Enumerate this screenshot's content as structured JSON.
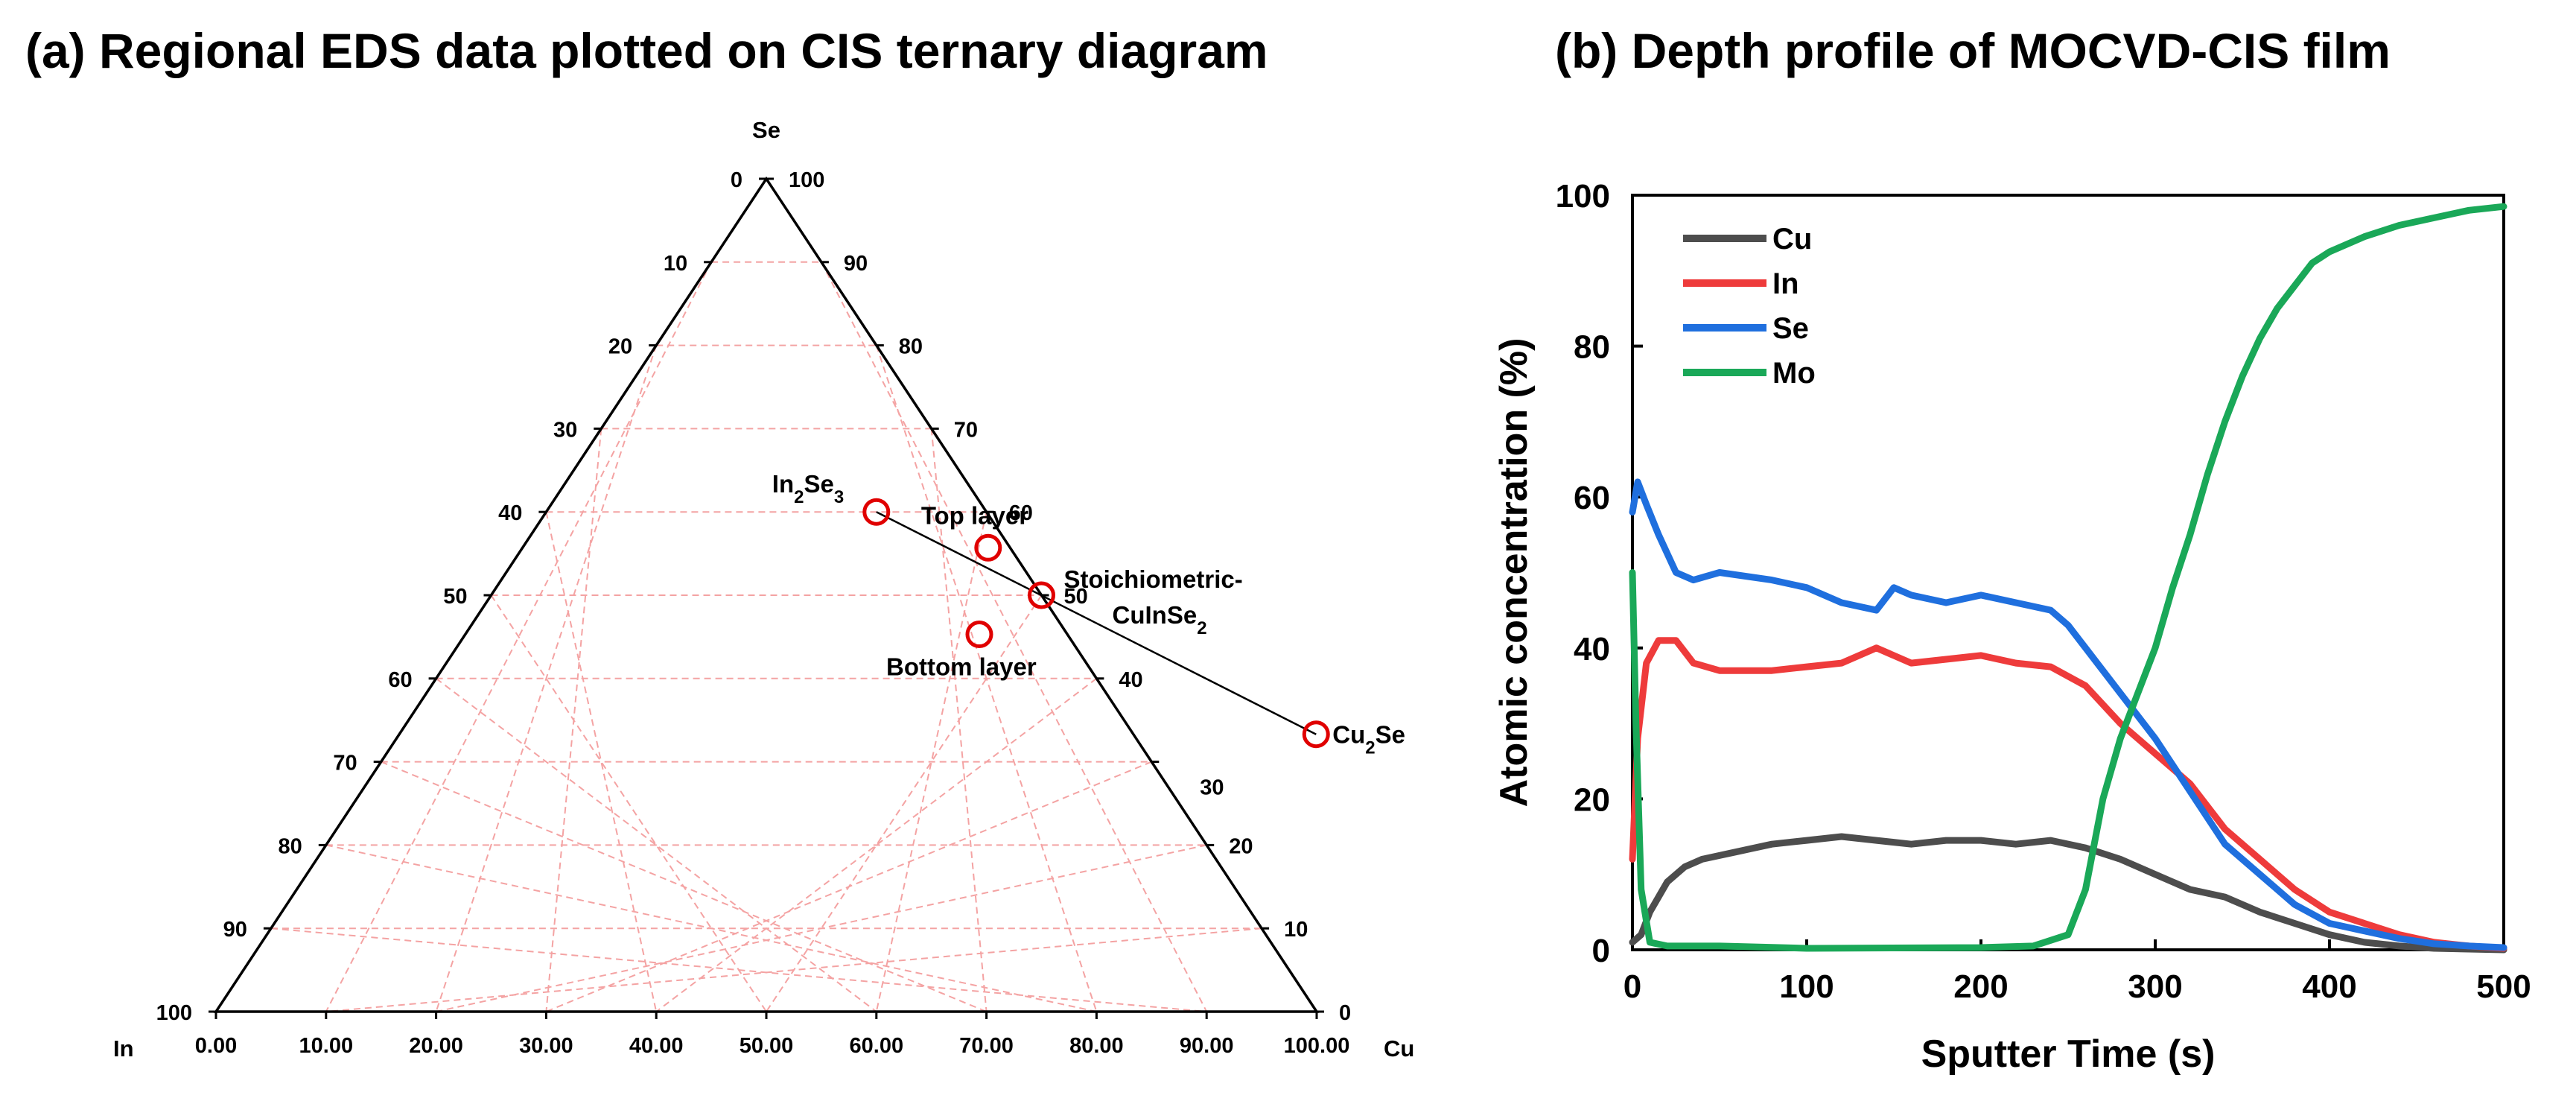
{
  "panel_a": {
    "title": "(a) Regional EDS data plotted on CIS ternary diagram"
  },
  "panel_b": {
    "title": "(b) Depth profile of MOCVD-CIS film"
  },
  "chart_data": [
    {
      "type": "ternary",
      "title": "(a) Regional EDS data plotted on CIS ternary diagram",
      "corners": {
        "top": "Se",
        "left": "In",
        "right": "Cu"
      },
      "bottom_axis_ticks": [
        "0.00",
        "10.00",
        "20.00",
        "30.00",
        "40.00",
        "50.00",
        "60.00",
        "70.00",
        "80.00",
        "90.00",
        "100.00"
      ],
      "left_axis_ticks": [
        "0",
        "10",
        "20",
        "30",
        "40",
        "50",
        "60",
        "70",
        "80",
        "90",
        "100"
      ],
      "right_axis_ticks": [
        "100",
        "90",
        "80",
        "70",
        "60",
        "50",
        "40",
        "30",
        "20",
        "10",
        "0"
      ],
      "grid": true,
      "tie_line": {
        "from": "In2Se3",
        "to": "Cu2Se"
      },
      "points": [
        {
          "name": "In2Se3",
          "label_main": "In",
          "sub1": "2",
          "mid": "Se",
          "sub2": "3",
          "x": 30.0,
          "left": 40.0
        },
        {
          "name": "Top layer",
          "label_main": "Top layer",
          "x": 42.3,
          "left": 44.3
        },
        {
          "name": "Stoichiometric-CuInSe2",
          "label_line1": "Stoichiometric-",
          "label_line2": "CuInSe",
          "sub2": "2",
          "x": 50.0,
          "left": 50.0
        },
        {
          "name": "Bottom layer",
          "label_main": "Bottom layer",
          "x": 46.7,
          "left": 54.7
        },
        {
          "name": "Cu2Se",
          "label_main": "Cu",
          "sub1": "2",
          "mid": "Se",
          "x": 83.3,
          "left": 66.7
        }
      ]
    },
    {
      "type": "line",
      "title": "(b) Depth profile of MOCVD-CIS film",
      "xlabel": "Sputter Time (s)",
      "ylabel": "Atomic concentration (%)",
      "xlim": [
        0,
        500
      ],
      "ylim": [
        0,
        100
      ],
      "xticks": [
        0,
        100,
        200,
        300,
        400,
        500
      ],
      "yticks": [
        0,
        20,
        40,
        60,
        80,
        100
      ],
      "legend_position": "top-left",
      "series": [
        {
          "name": "Cu",
          "color": "#4d4d4d",
          "points": [
            [
              0,
              1
            ],
            [
              5,
              2
            ],
            [
              10,
              5
            ],
            [
              20,
              9
            ],
            [
              30,
              11
            ],
            [
              40,
              12
            ],
            [
              60,
              13
            ],
            [
              80,
              14
            ],
            [
              100,
              14.5
            ],
            [
              120,
              15
            ],
            [
              140,
              14.5
            ],
            [
              160,
              14
            ],
            [
              180,
              14.5
            ],
            [
              200,
              14.5
            ],
            [
              220,
              14
            ],
            [
              240,
              14.5
            ],
            [
              260,
              13.5
            ],
            [
              280,
              12
            ],
            [
              300,
              10
            ],
            [
              320,
              8
            ],
            [
              340,
              7
            ],
            [
              360,
              5
            ],
            [
              380,
              3.5
            ],
            [
              400,
              2
            ],
            [
              420,
              1
            ],
            [
              440,
              0.5
            ],
            [
              460,
              0.2
            ],
            [
              500,
              0
            ]
          ]
        },
        {
          "name": "In",
          "color": "#ee3b3b",
          "points": [
            [
              0,
              12
            ],
            [
              3,
              28
            ],
            [
              8,
              38
            ],
            [
              15,
              41
            ],
            [
              25,
              41
            ],
            [
              35,
              38
            ],
            [
              50,
              37
            ],
            [
              80,
              37
            ],
            [
              100,
              37.5
            ],
            [
              120,
              38
            ],
            [
              140,
              40
            ],
            [
              160,
              38
            ],
            [
              180,
              38.5
            ],
            [
              200,
              39
            ],
            [
              220,
              38
            ],
            [
              240,
              37.5
            ],
            [
              260,
              35
            ],
            [
              280,
              30
            ],
            [
              300,
              26
            ],
            [
              320,
              22
            ],
            [
              340,
              16
            ],
            [
              360,
              12
            ],
            [
              380,
              8
            ],
            [
              400,
              5
            ],
            [
              420,
              3.5
            ],
            [
              440,
              2
            ],
            [
              460,
              1
            ],
            [
              480,
              0.5
            ],
            [
              500,
              0.2
            ]
          ]
        },
        {
          "name": "Se",
          "color": "#1f6fde",
          "points": [
            [
              0,
              58
            ],
            [
              3,
              62
            ],
            [
              8,
              59
            ],
            [
              15,
              55
            ],
            [
              25,
              50
            ],
            [
              35,
              49
            ],
            [
              50,
              50
            ],
            [
              80,
              49
            ],
            [
              100,
              48
            ],
            [
              120,
              46
            ],
            [
              140,
              45
            ],
            [
              150,
              48
            ],
            [
              160,
              47
            ],
            [
              180,
              46
            ],
            [
              200,
              47
            ],
            [
              220,
              46
            ],
            [
              240,
              45
            ],
            [
              250,
              43
            ],
            [
              260,
              40
            ],
            [
              280,
              34
            ],
            [
              300,
              28
            ],
            [
              320,
              21
            ],
            [
              340,
              14
            ],
            [
              360,
              10
            ],
            [
              380,
              6
            ],
            [
              400,
              3.5
            ],
            [
              420,
              2.5
            ],
            [
              440,
              1.5
            ],
            [
              460,
              0.8
            ],
            [
              480,
              0.5
            ],
            [
              500,
              0.3
            ]
          ]
        },
        {
          "name": "Mo",
          "color": "#1aa858",
          "points": [
            [
              0,
              50
            ],
            [
              2,
              30
            ],
            [
              5,
              8
            ],
            [
              10,
              1
            ],
            [
              20,
              0.5
            ],
            [
              50,
              0.5
            ],
            [
              100,
              0.2
            ],
            [
              200,
              0.3
            ],
            [
              230,
              0.5
            ],
            [
              250,
              2
            ],
            [
              260,
              8
            ],
            [
              270,
              20
            ],
            [
              280,
              28
            ],
            [
              290,
              34
            ],
            [
              300,
              40
            ],
            [
              310,
              48
            ],
            [
              320,
              55
            ],
            [
              330,
              63
            ],
            [
              340,
              70
            ],
            [
              350,
              76
            ],
            [
              360,
              81
            ],
            [
              370,
              85
            ],
            [
              380,
              88
            ],
            [
              390,
              91
            ],
            [
              400,
              92.5
            ],
            [
              420,
              94.5
            ],
            [
              440,
              96
            ],
            [
              460,
              97
            ],
            [
              480,
              98
            ],
            [
              500,
              98.5
            ]
          ]
        }
      ]
    }
  ]
}
